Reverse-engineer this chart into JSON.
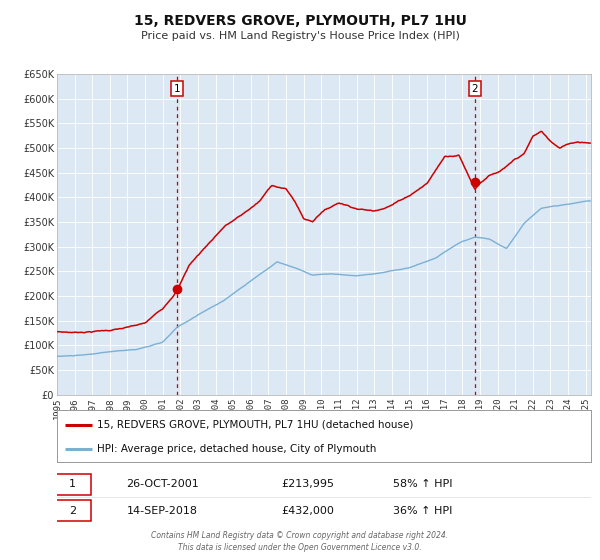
{
  "title": "15, REDVERS GROVE, PLYMOUTH, PL7 1HU",
  "subtitle": "Price paid vs. HM Land Registry's House Price Index (HPI)",
  "bg_color": "#dce9f5",
  "outer_bg_color": "#ffffff",
  "red_line_color": "#cc0000",
  "blue_line_color": "#7ab0d4",
  "dashed_line_color": "#cc0000",
  "ylim": [
    0,
    650000
  ],
  "xlim_start": 1995.0,
  "xlim_end": 2025.3,
  "yticks": [
    0,
    50000,
    100000,
    150000,
    200000,
    250000,
    300000,
    350000,
    400000,
    450000,
    500000,
    550000,
    600000,
    650000
  ],
  "ytick_labels": [
    "£0",
    "£50K",
    "£100K",
    "£150K",
    "£200K",
    "£250K",
    "£300K",
    "£350K",
    "£400K",
    "£450K",
    "£500K",
    "£550K",
    "£600K",
    "£650K"
  ],
  "xticks": [
    1995,
    1996,
    1997,
    1998,
    1999,
    2000,
    2001,
    2002,
    2003,
    2004,
    2005,
    2006,
    2007,
    2008,
    2009,
    2010,
    2011,
    2012,
    2013,
    2014,
    2015,
    2016,
    2017,
    2018,
    2019,
    2020,
    2021,
    2022,
    2023,
    2024,
    2025
  ],
  "sale1_x": 2001.82,
  "sale1_y": 213995,
  "sale1_label": "1",
  "sale1_date": "26-OCT-2001",
  "sale1_price": "£213,995",
  "sale1_hpi": "58% ↑ HPI",
  "sale2_x": 2018.71,
  "sale2_y": 432000,
  "sale2_label": "2",
  "sale2_date": "14-SEP-2018",
  "sale2_price": "£432,000",
  "sale2_hpi": "36% ↑ HPI",
  "legend_line1": "15, REDVERS GROVE, PLYMOUTH, PL7 1HU (detached house)",
  "legend_line2": "HPI: Average price, detached house, City of Plymouth",
  "footer": "Contains HM Land Registry data © Crown copyright and database right 2024.\nThis data is licensed under the Open Government Licence v3.0."
}
